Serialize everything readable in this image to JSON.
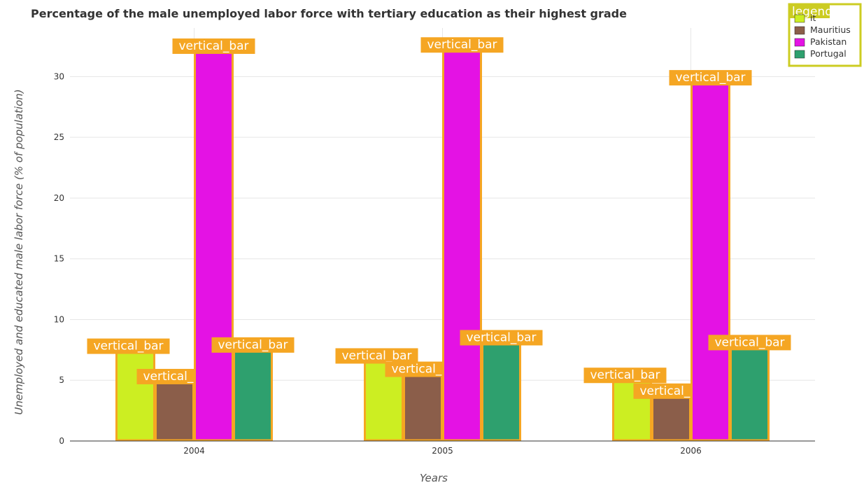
{
  "chart_data": {
    "type": "bar",
    "title": "Percentage of the male unemployed labor force with tertiary education as their highest grade",
    "xlabel": "Years",
    "ylabel": "Unemployed and educated male labor force (% of population)",
    "categories": [
      "2004",
      "2005",
      "2006"
    ],
    "ylim": [
      0,
      34
    ],
    "yticks": [
      0,
      5,
      10,
      15,
      20,
      25,
      30
    ],
    "grid": true,
    "legend": {
      "title": "legend",
      "placement": "top-right",
      "entries": [
        "Kuwait",
        "Mauritius",
        "Pakistan",
        "Portugal"
      ],
      "visible_labels": [
        "it",
        "Mauritius",
        "Pakistan",
        "Portugal"
      ]
    },
    "series": [
      {
        "name": "Kuwait",
        "color": "#ccee22",
        "values": [
          7.4,
          6.6,
          5.0
        ]
      },
      {
        "name": "Mauritius",
        "color": "#8b5e4a",
        "values": [
          4.9,
          5.5,
          3.7
        ]
      },
      {
        "name": "Pakistan",
        "color": "#e412e4",
        "values": [
          32.1,
          32.2,
          29.5
        ]
      },
      {
        "name": "Portugal",
        "color": "#2ea06e",
        "values": [
          7.5,
          8.1,
          7.7
        ]
      }
    ],
    "annotation_label": "vertical_bar",
    "annotation_color": "#f5a623"
  }
}
